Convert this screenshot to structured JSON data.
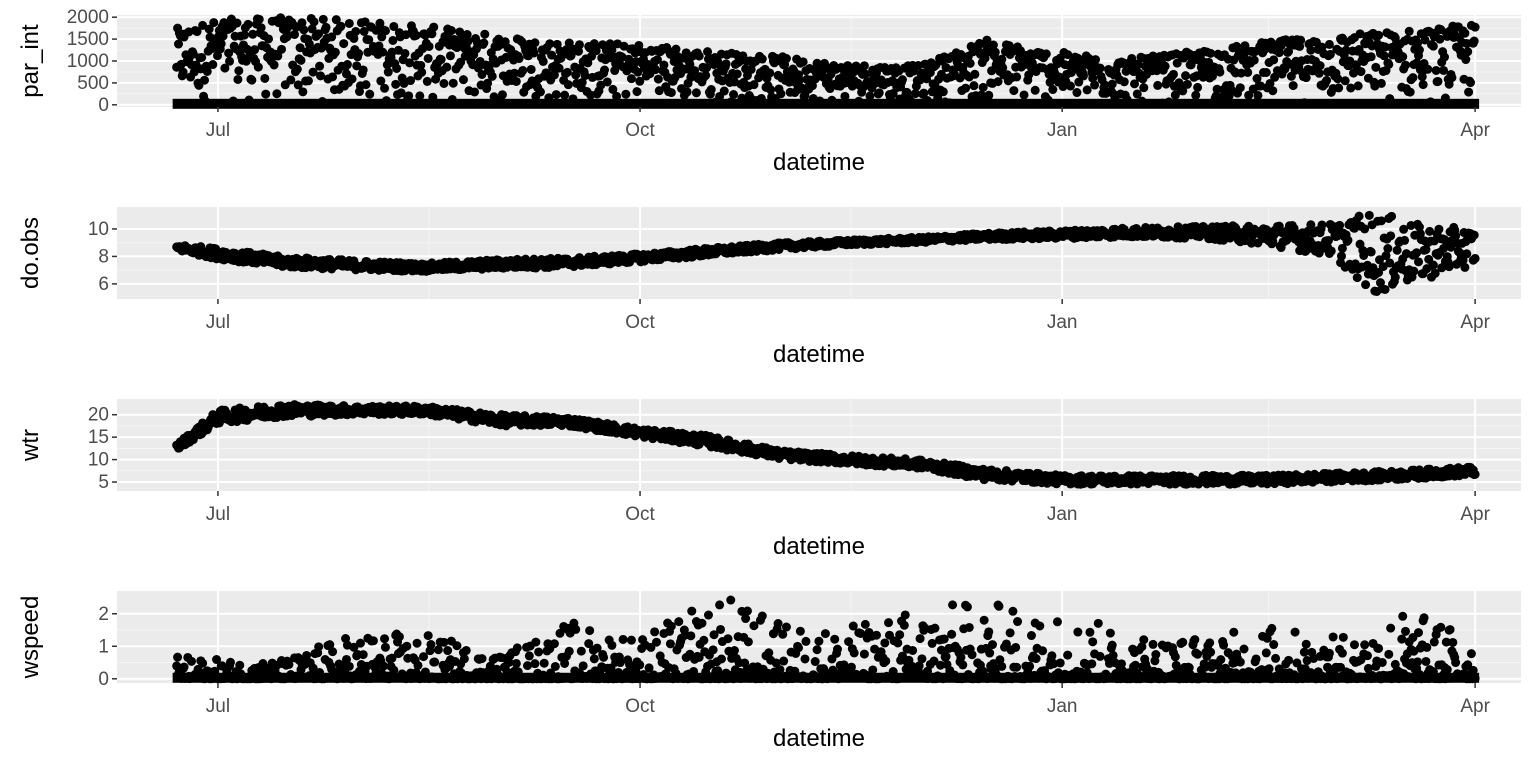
{
  "colors": {
    "panel_background": "#ebebeb",
    "grid_major": "#ffffff",
    "grid_minor": "#f5f5f5",
    "points": "#000000",
    "tick_text": "#4d4d4d",
    "tick_marks": "#333333"
  },
  "chart_data": [
    {
      "type": "scatter",
      "xlabel": "datetime",
      "ylabel": "par_int",
      "x_ticks": [
        "Jul",
        "Oct",
        "Jan",
        "Apr"
      ],
      "x_range": [
        "2012-06-09",
        "2013-04-11"
      ],
      "y_ticks": [
        0,
        500,
        1000,
        1500,
        2000
      ],
      "ylim": [
        -50,
        2050
      ],
      "grid": true,
      "points_shape": "summary envelope of a dense time series",
      "series": [
        {
          "x": "2012-06-22",
          "y": [
            0,
            1750
          ]
        },
        {
          "x": "2012-07-01",
          "y": [
            0,
            1950
          ]
        },
        {
          "x": "2012-07-15",
          "y": [
            0,
            2000
          ]
        },
        {
          "x": "2012-08-01",
          "y": [
            0,
            1950
          ]
        },
        {
          "x": "2012-08-15",
          "y": [
            0,
            1800
          ]
        },
        {
          "x": "2012-09-01",
          "y": [
            0,
            1600
          ]
        },
        {
          "x": "2012-09-15",
          "y": [
            0,
            1450
          ]
        },
        {
          "x": "2012-10-01",
          "y": [
            0,
            1400
          ]
        },
        {
          "x": "2012-10-15",
          "y": [
            0,
            1250
          ]
        },
        {
          "x": "2012-11-01",
          "y": [
            0,
            1100
          ]
        },
        {
          "x": "2012-11-15",
          "y": [
            0,
            950
          ]
        },
        {
          "x": "2012-12-01",
          "y": [
            0,
            900
          ]
        },
        {
          "x": "2012-12-15",
          "y": [
            0,
            1500
          ]
        },
        {
          "x": "2013-01-01",
          "y": [
            0,
            1200
          ]
        },
        {
          "x": "2013-01-15",
          "y": [
            0,
            1050
          ]
        },
        {
          "x": "2013-02-01",
          "y": [
            0,
            1250
          ]
        },
        {
          "x": "2013-02-15",
          "y": [
            0,
            1450
          ]
        },
        {
          "x": "2013-03-01",
          "y": [
            0,
            1600
          ]
        },
        {
          "x": "2013-03-15",
          "y": [
            0,
            1700
          ]
        },
        {
          "x": "2013-04-01",
          "y": [
            0,
            1850
          ]
        }
      ]
    },
    {
      "type": "scatter",
      "xlabel": "datetime",
      "ylabel": "do.obs",
      "x_ticks": [
        "Jul",
        "Oct",
        "Jan",
        "Apr"
      ],
      "x_range": [
        "2012-06-09",
        "2013-04-11"
      ],
      "y_ticks": [
        6,
        8,
        10
      ],
      "ylim": [
        4.9,
        11.6
      ],
      "grid": true,
      "series": [
        {
          "x": "2012-06-22",
          "y": [
            8.4,
            8.9
          ]
        },
        {
          "x": "2012-07-01",
          "y": [
            7.8,
            8.6
          ]
        },
        {
          "x": "2012-07-15",
          "y": [
            7.2,
            8.0
          ]
        },
        {
          "x": "2012-08-01",
          "y": [
            7.0,
            7.7
          ]
        },
        {
          "x": "2012-08-15",
          "y": [
            6.9,
            7.5
          ]
        },
        {
          "x": "2012-09-01",
          "y": [
            7.1,
            7.8
          ]
        },
        {
          "x": "2012-09-15",
          "y": [
            7.2,
            7.9
          ]
        },
        {
          "x": "2012-10-01",
          "y": [
            7.6,
            8.2
          ]
        },
        {
          "x": "2012-10-15",
          "y": [
            8.0,
            8.6
          ]
        },
        {
          "x": "2012-11-01",
          "y": [
            8.5,
            9.0
          ]
        },
        {
          "x": "2012-11-15",
          "y": [
            8.8,
            9.2
          ]
        },
        {
          "x": "2012-12-01",
          "y": [
            9.0,
            9.4
          ]
        },
        {
          "x": "2012-12-15",
          "y": [
            9.2,
            9.7
          ]
        },
        {
          "x": "2013-01-01",
          "y": [
            9.3,
            9.9
          ]
        },
        {
          "x": "2013-01-15",
          "y": [
            9.4,
            10.1
          ]
        },
        {
          "x": "2013-02-01",
          "y": [
            9.3,
            10.2
          ]
        },
        {
          "x": "2013-02-15",
          "y": [
            8.8,
            10.3
          ]
        },
        {
          "x": "2013-03-01",
          "y": [
            8.0,
            10.4
          ]
        },
        {
          "x": "2013-03-10",
          "y": [
            5.2,
            11.3
          ]
        },
        {
          "x": "2013-03-20",
          "y": [
            6.2,
            10.3
          ]
        },
        {
          "x": "2013-04-01",
          "y": [
            7.4,
            10.0
          ]
        }
      ]
    },
    {
      "type": "scatter",
      "xlabel": "datetime",
      "ylabel": "wtr",
      "x_ticks": [
        "Jul",
        "Oct",
        "Jan",
        "Apr"
      ],
      "x_range": [
        "2012-06-09",
        "2013-04-11"
      ],
      "y_ticks": [
        5,
        10,
        15,
        20
      ],
      "ylim": [
        3.0,
        23.5
      ],
      "grid": true,
      "series": [
        {
          "x": "2012-06-22",
          "y": [
            12.0,
            13.5
          ]
        },
        {
          "x": "2012-07-01",
          "y": [
            18.0,
            21.0
          ]
        },
        {
          "x": "2012-07-15",
          "y": [
            19.5,
            22.5
          ]
        },
        {
          "x": "2012-08-01",
          "y": [
            20.0,
            22.0
          ]
        },
        {
          "x": "2012-08-15",
          "y": [
            20.0,
            22.0
          ]
        },
        {
          "x": "2012-09-01",
          "y": [
            17.5,
            20.0
          ]
        },
        {
          "x": "2012-09-15",
          "y": [
            17.5,
            19.5
          ]
        },
        {
          "x": "2012-10-01",
          "y": [
            15.0,
            17.0
          ]
        },
        {
          "x": "2012-10-15",
          "y": [
            13.0,
            15.5
          ]
        },
        {
          "x": "2012-11-01",
          "y": [
            10.0,
            12.0
          ]
        },
        {
          "x": "2012-11-15",
          "y": [
            9.0,
            11.0
          ]
        },
        {
          "x": "2012-12-01",
          "y": [
            8.0,
            10.0
          ]
        },
        {
          "x": "2012-12-15",
          "y": [
            5.5,
            8.0
          ]
        },
        {
          "x": "2013-01-01",
          "y": [
            4.5,
            6.5
          ]
        },
        {
          "x": "2013-01-15",
          "y": [
            4.5,
            6.5
          ]
        },
        {
          "x": "2013-02-01",
          "y": [
            4.5,
            6.5
          ]
        },
        {
          "x": "2013-02-15",
          "y": [
            4.5,
            6.5
          ]
        },
        {
          "x": "2013-03-01",
          "y": [
            5.0,
            7.0
          ]
        },
        {
          "x": "2013-03-15",
          "y": [
            5.5,
            7.5
          ]
        },
        {
          "x": "2013-04-01",
          "y": [
            6.5,
            8.5
          ]
        }
      ]
    },
    {
      "type": "scatter",
      "xlabel": "datetime",
      "ylabel": "wspeed",
      "x_ticks": [
        "Jul",
        "Oct",
        "Jan",
        "Apr"
      ],
      "x_range": [
        "2012-06-09",
        "2013-04-11"
      ],
      "y_ticks": [
        0,
        1,
        2
      ],
      "ylim": [
        -0.13,
        2.7
      ],
      "grid": true,
      "series": [
        {
          "x": "2012-06-22",
          "y": [
            0,
            0.7
          ]
        },
        {
          "x": "2012-07-01",
          "y": [
            0,
            0.6
          ]
        },
        {
          "x": "2012-07-15",
          "y": [
            0,
            0.6
          ]
        },
        {
          "x": "2012-08-01",
          "y": [
            0,
            1.5
          ]
        },
        {
          "x": "2012-08-15",
          "y": [
            0,
            1.4
          ]
        },
        {
          "x": "2012-09-01",
          "y": [
            0,
            0.8
          ]
        },
        {
          "x": "2012-09-15",
          "y": [
            0,
            1.8
          ]
        },
        {
          "x": "2012-10-01",
          "y": [
            0,
            1.4
          ]
        },
        {
          "x": "2012-10-20",
          "y": [
            0,
            2.6
          ]
        },
        {
          "x": "2012-11-01",
          "y": [
            0,
            1.7
          ]
        },
        {
          "x": "2012-11-15",
          "y": [
            0,
            1.6
          ]
        },
        {
          "x": "2012-12-01",
          "y": [
            0,
            2.3
          ]
        },
        {
          "x": "2012-12-15",
          "y": [
            0,
            2.4
          ]
        },
        {
          "x": "2013-01-01",
          "y": [
            0,
            2.1
          ]
        },
        {
          "x": "2013-01-15",
          "y": [
            0,
            1.5
          ]
        },
        {
          "x": "2013-02-01",
          "y": [
            0,
            1.3
          ]
        },
        {
          "x": "2013-02-15",
          "y": [
            0,
            1.7
          ]
        },
        {
          "x": "2013-03-01",
          "y": [
            0,
            1.3
          ]
        },
        {
          "x": "2013-03-15",
          "y": [
            0,
            2.2
          ]
        },
        {
          "x": "2013-04-01",
          "y": [
            0,
            1.5
          ]
        }
      ]
    }
  ]
}
